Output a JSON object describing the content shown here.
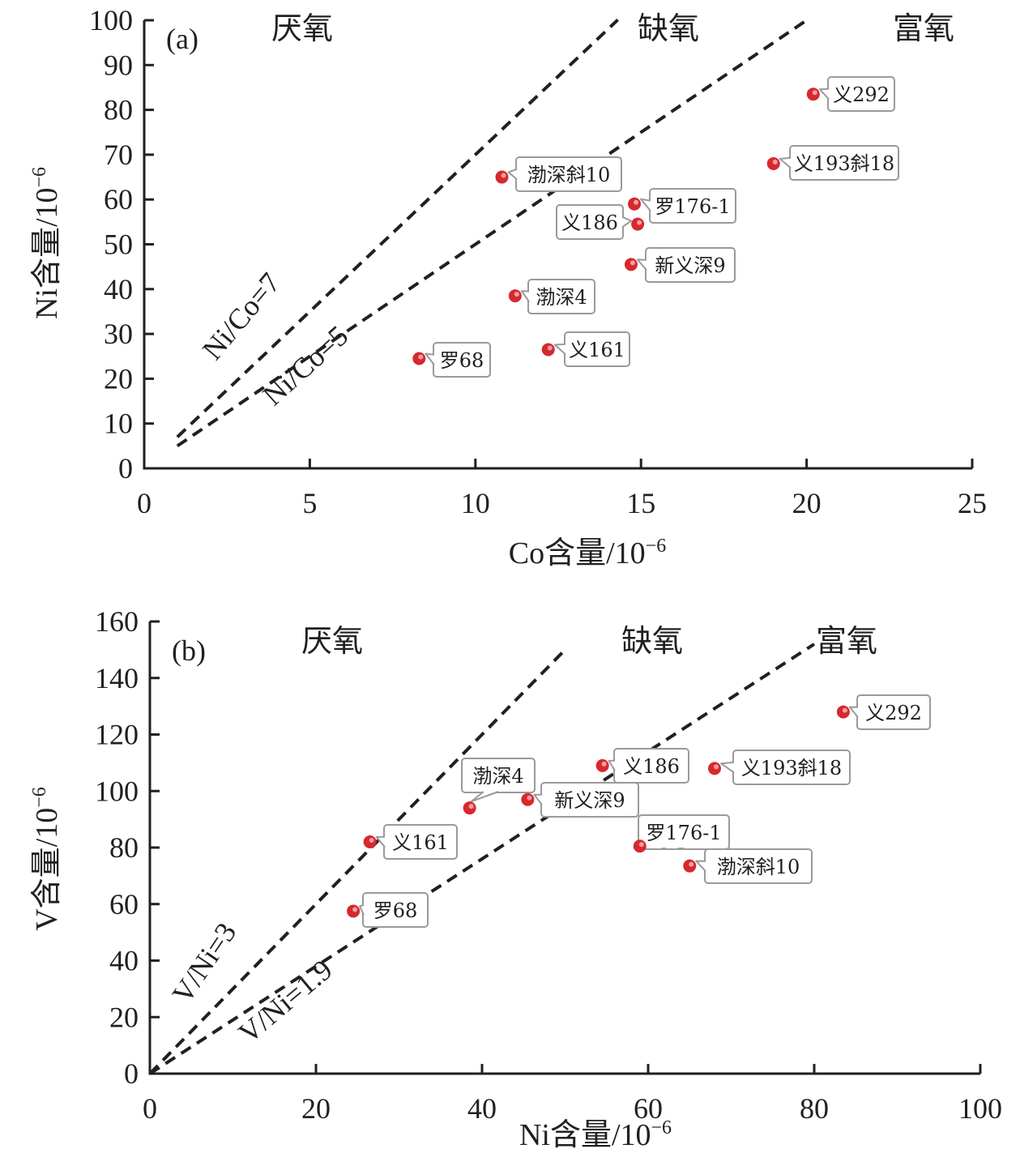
{
  "chart_data": [
    {
      "panel": "(a)",
      "type": "scatter",
      "xlabel": "Co含量/10",
      "xlabel_sup": "−6",
      "ylabel": "Ni含量/10",
      "ylabel_sup": "−6",
      "xlim": [
        0,
        25
      ],
      "ylim": [
        0,
        100
      ],
      "xticks": [
        "0",
        "5",
        "10",
        "15",
        "20",
        "25"
      ],
      "yticks": [
        "0",
        "10",
        "20",
        "30",
        "40",
        "50",
        "60",
        "70",
        "80",
        "90",
        "100"
      ],
      "regions": [
        "厌氧",
        "缺氧",
        "富氧"
      ],
      "reference_lines": [
        {
          "label": "Ni/Co=7",
          "ratio": 7,
          "x": [
            1,
            14.3
          ]
        },
        {
          "label": "Ni/Co=5",
          "ratio": 5,
          "x": [
            1,
            20
          ]
        }
      ],
      "points": [
        {
          "name": "义292",
          "x": 20.2,
          "y": 83.5
        },
        {
          "name": "义193斜18",
          "x": 19,
          "y": 68
        },
        {
          "name": "渤深斜10",
          "x": 10.8,
          "y": 65
        },
        {
          "name": "罗176-1",
          "x": 14.8,
          "y": 59
        },
        {
          "name": "义186",
          "x": 14.9,
          "y": 54.5
        },
        {
          "name": "新义深9",
          "x": 14.7,
          "y": 45.5
        },
        {
          "name": "渤深4",
          "x": 11.2,
          "y": 38.5
        },
        {
          "name": "义161",
          "x": 12.2,
          "y": 26.5
        },
        {
          "name": "罗68",
          "x": 8.3,
          "y": 24.5
        }
      ]
    },
    {
      "panel": "(b)",
      "type": "scatter",
      "xlabel": "Ni含量/10",
      "xlabel_sup": "−6",
      "ylabel": "V含量/10",
      "ylabel_sup": "−6",
      "xlim": [
        0,
        100
      ],
      "ylim": [
        0,
        160
      ],
      "xticks": [
        "0",
        "20",
        "40",
        "60",
        "80",
        "100"
      ],
      "yticks": [
        "0",
        "20",
        "40",
        "60",
        "80",
        "100",
        "120",
        "140",
        "160"
      ],
      "regions": [
        "厌氧",
        "缺氧",
        "富氧"
      ],
      "reference_lines": [
        {
          "label": "V/Ni=3",
          "ratio": 3,
          "x": [
            0,
            50
          ]
        },
        {
          "label": "V/Ni=1.9",
          "ratio": 1.9,
          "x": [
            0,
            80
          ]
        }
      ],
      "points": [
        {
          "name": "义292",
          "x": 83.5,
          "y": 128
        },
        {
          "name": "义186",
          "x": 54.5,
          "y": 109
        },
        {
          "name": "义193斜18",
          "x": 68,
          "y": 108
        },
        {
          "name": "渤深4",
          "x": 38.5,
          "y": 94
        },
        {
          "name": "新义深9",
          "x": 45.5,
          "y": 97
        },
        {
          "name": "义161",
          "x": 26.5,
          "y": 82
        },
        {
          "name": "罗176-1",
          "x": 59,
          "y": 80.5
        },
        {
          "name": "渤深斜10",
          "x": 65,
          "y": 73.5
        },
        {
          "name": "罗68",
          "x": 24.5,
          "y": 57.5
        }
      ]
    }
  ],
  "colors": {
    "point": "#d7282e",
    "axis": "#231f20"
  }
}
